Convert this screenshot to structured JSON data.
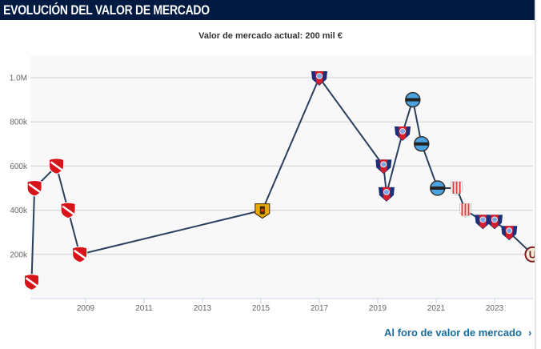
{
  "header": {
    "title": "EVOLUCIÓN DEL VALOR DE MERCADO"
  },
  "subtitle": "Valor de mercado actual: 200 mil €",
  "link": {
    "label": "Al foro de valor de mercado",
    "icon": "chevron-right-icon"
  },
  "colors": {
    "header_bg": "#001a41",
    "line": "#2b3f5e",
    "link": "#1a6e9f",
    "plot_bg": "#f8f8f8"
  },
  "chart_data": {
    "type": "line",
    "title": "",
    "xlabel": "",
    "ylabel": "",
    "xlim": [
      2007.1,
      2024.3
    ],
    "ylim": [
      0,
      1100000
    ],
    "grid": true,
    "x_ticks": [
      "2009",
      "2011",
      "2013",
      "2015",
      "2017",
      "2019",
      "2021",
      "2023"
    ],
    "y_ticks": [
      {
        "value": 200000,
        "label": "200k"
      },
      {
        "value": 400000,
        "label": "400k"
      },
      {
        "value": 600000,
        "label": "600k"
      },
      {
        "value": 800000,
        "label": "800k"
      },
      {
        "value": 1000000,
        "label": "1.0M"
      }
    ],
    "points": [
      {
        "x": 2007.15,
        "y": 75000,
        "icon": "club-crest-red-icon"
      },
      {
        "x": 2007.25,
        "y": 500000,
        "icon": "club-crest-red-icon"
      },
      {
        "x": 2008.0,
        "y": 600000,
        "icon": "club-crest-red-icon"
      },
      {
        "x": 2008.4,
        "y": 400000,
        "icon": "club-crest-red-icon"
      },
      {
        "x": 2008.8,
        "y": 200000,
        "icon": "club-crest-red-icon"
      },
      {
        "x": 2015.05,
        "y": 400000,
        "icon": "club-crest-yellow-eagle-icon"
      },
      {
        "x": 2017.0,
        "y": 1000000,
        "icon": "club-crest-blue-red-shield-icon"
      },
      {
        "x": 2019.2,
        "y": 600000,
        "icon": "club-crest-blue-red-shield-icon"
      },
      {
        "x": 2019.3,
        "y": 475000,
        "icon": "club-crest-blue-red-shield-icon"
      },
      {
        "x": 2019.85,
        "y": 750000,
        "icon": "club-crest-blue-red-shield-icon"
      },
      {
        "x": 2020.2,
        "y": 900000,
        "icon": "club-crest-blue-circle-icon"
      },
      {
        "x": 2020.5,
        "y": 700000,
        "icon": "club-crest-blue-circle-icon"
      },
      {
        "x": 2021.05,
        "y": 500000,
        "icon": "club-crest-blue-circle-icon"
      },
      {
        "x": 2021.7,
        "y": 500000,
        "icon": "club-crest-striped-icon"
      },
      {
        "x": 2022.0,
        "y": 400000,
        "icon": "club-crest-striped-icon"
      },
      {
        "x": 2022.6,
        "y": 350000,
        "icon": "club-crest-blue-red-shield-icon"
      },
      {
        "x": 2023.0,
        "y": 350000,
        "icon": "club-crest-blue-red-shield-icon"
      },
      {
        "x": 2023.5,
        "y": 300000,
        "icon": "club-crest-blue-red-shield-icon"
      },
      {
        "x": 2024.3,
        "y": 200000,
        "icon": "club-crest-u-icon"
      }
    ]
  }
}
